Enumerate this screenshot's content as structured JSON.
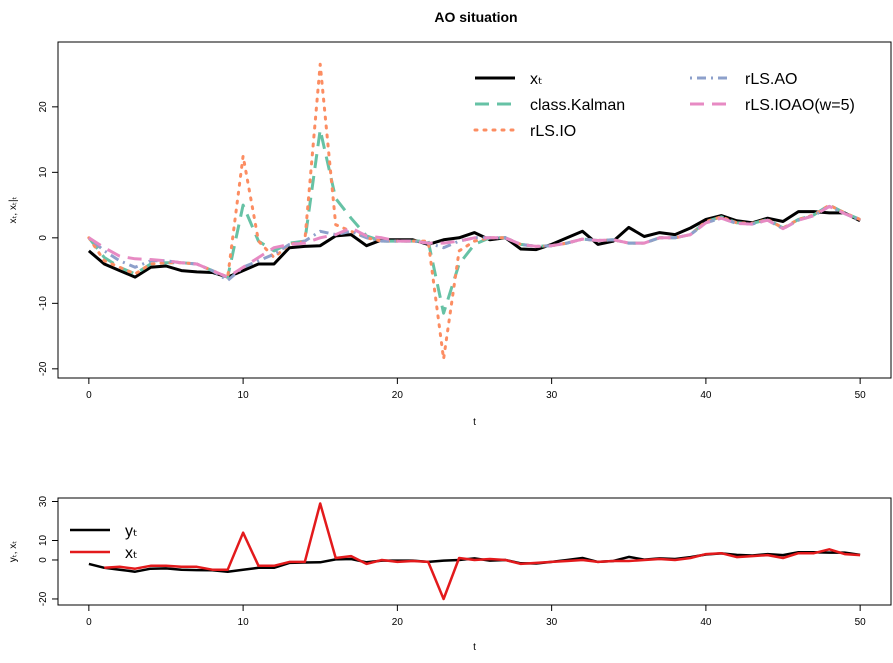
{
  "chart_data": [
    {
      "type": "line",
      "title": "AO situation",
      "xlabel": "t",
      "ylabel": "xₜ, xₜ|ₜ",
      "x": [
        0,
        1,
        2,
        3,
        4,
        5,
        6,
        7,
        8,
        9,
        10,
        11,
        12,
        13,
        14,
        15,
        16,
        17,
        18,
        19,
        20,
        21,
        22,
        23,
        24,
        25,
        26,
        27,
        28,
        29,
        30,
        31,
        32,
        33,
        34,
        35,
        36,
        37,
        38,
        39,
        40,
        41,
        42,
        43,
        44,
        45,
        46,
        47,
        48,
        49,
        50
      ],
      "xlim": [
        -2,
        52
      ],
      "xticks": [
        0,
        10,
        20,
        30,
        40,
        50
      ],
      "ylim": [
        -21.4,
        29.9
      ],
      "yticks": [
        -20,
        -10,
        0,
        10,
        20
      ],
      "legend": "top-right",
      "series": [
        {
          "name": "xₜ",
          "color": "#000000",
          "linestyle": "solid",
          "values": [
            -2,
            -4,
            -5,
            -6,
            -4.5,
            -4.3,
            -5,
            -5.2,
            -5.3,
            -6,
            -5,
            -4,
            -4,
            -1.5,
            -1.3,
            -1.2,
            0.3,
            0.5,
            -1.2,
            -0.3,
            -0.3,
            -0.3,
            -1,
            -0.3,
            0,
            0.8,
            -0.3,
            0,
            -1.7,
            -1.8,
            -1,
            0,
            1,
            -1,
            -0.5,
            1.6,
            0.2,
            0.8,
            0.5,
            1.5,
            2.8,
            3.4,
            2.6,
            2.3,
            3,
            2.5,
            4,
            4,
            3.8,
            3.8,
            2.6
          ]
        },
        {
          "name": "class.Kalman",
          "color": "#66c2a5",
          "linestyle": "dashed",
          "values": [
            0,
            -3,
            -4.5,
            -5.5,
            -4,
            -3.8,
            -3.8,
            -4,
            -5,
            -6,
            5,
            -0.5,
            -2,
            -0.8,
            -0.5,
            16.5,
            6,
            3,
            0.3,
            -0.5,
            -0.5,
            -0.5,
            -0.5,
            -11.5,
            -4,
            -1,
            0,
            0,
            -1,
            -1.3,
            -1.2,
            -0.8,
            -0.2,
            -0.4,
            -0.3,
            -0.8,
            -0.8,
            0,
            0,
            0.5,
            2.5,
            3.2,
            2.3,
            2.2,
            2.8,
            1.5,
            2.8,
            3.5,
            5,
            3.8,
            2.8
          ]
        },
        {
          "name": "rLS.IO",
          "color": "#fc8d62",
          "linestyle": "dotted",
          "values": [
            0,
            -3.5,
            -4.5,
            -5.5,
            -4,
            -3.8,
            -3.8,
            -4,
            -5,
            -6,
            12.5,
            -0.5,
            -3,
            -1,
            -0.5,
            26.5,
            2,
            1,
            0,
            -0.5,
            -0.5,
            -0.5,
            -0.5,
            -18.5,
            -2,
            -0.5,
            0,
            0,
            -1,
            -1.3,
            -1.2,
            -0.8,
            -0.2,
            -0.4,
            -0.3,
            -0.8,
            -0.8,
            0,
            0,
            0.5,
            2.5,
            3.2,
            2.3,
            2.2,
            2.8,
            1.5,
            2.8,
            3.5,
            5,
            3.8,
            2.8
          ]
        },
        {
          "name": "rLS.AO",
          "color": "#8da0cb",
          "linestyle": "dotdash",
          "values": [
            0,
            -2,
            -3.5,
            -4.5,
            -3.5,
            -3.5,
            -3.8,
            -4,
            -5,
            -6.5,
            -4.5,
            -3.5,
            -2.5,
            -1,
            -0.5,
            1,
            0.5,
            1,
            0,
            -0.5,
            -0.5,
            -0.5,
            -0.8,
            -1.5,
            -0.5,
            0,
            0,
            0,
            -1,
            -1.3,
            -1.2,
            -0.8,
            -0.2,
            -0.4,
            -0.3,
            -0.8,
            -0.8,
            0,
            0,
            0.5,
            2.3,
            3,
            2.2,
            2.1,
            2.7,
            1.4,
            2.7,
            3.4,
            4.8,
            3.7,
            2.7
          ]
        },
        {
          "name": "rLS.IOAO(w=5)",
          "color": "#e78ac3",
          "linestyle": "dashed",
          "values": [
            0,
            -1.5,
            -2.8,
            -3.2,
            -3.3,
            -3.5,
            -3.8,
            -4,
            -5,
            -6,
            -4.5,
            -3,
            -1.5,
            -1,
            -0.8,
            0,
            0.5,
            1.5,
            0.3,
            0,
            -0.5,
            -0.5,
            -0.8,
            -0.8,
            -0.5,
            0,
            0,
            0,
            -1,
            -1.3,
            -1.2,
            -0.8,
            -0.2,
            -0.4,
            -0.3,
            -0.8,
            -0.8,
            0,
            0,
            0.5,
            2.3,
            3,
            2.2,
            2.1,
            2.7,
            1.4,
            2.7,
            3.4,
            4.8,
            3.7,
            2.7
          ]
        }
      ]
    },
    {
      "type": "line",
      "xlabel": "t",
      "ylabel": "yₜ, xₜ",
      "x": [
        0,
        1,
        2,
        3,
        4,
        5,
        6,
        7,
        8,
        9,
        10,
        11,
        12,
        13,
        14,
        15,
        16,
        17,
        18,
        19,
        20,
        21,
        22,
        23,
        24,
        25,
        26,
        27,
        28,
        29,
        30,
        31,
        32,
        33,
        34,
        35,
        36,
        37,
        38,
        39,
        40,
        41,
        42,
        43,
        44,
        45,
        46,
        47,
        48,
        49,
        50
      ],
      "xlim": [
        -2,
        52
      ],
      "xticks": [
        0,
        10,
        20,
        30,
        40,
        50
      ],
      "ylim": [
        -23.1,
        31.8
      ],
      "yticks": [
        -20,
        0,
        10,
        30
      ],
      "legend": "top-left",
      "series": [
        {
          "name": "yₜ",
          "color": "#000000",
          "linestyle": "solid",
          "values": [
            -2,
            -4,
            -5,
            -6,
            -4.5,
            -4.3,
            -5,
            -5.2,
            -5.3,
            -6,
            -5,
            -4,
            -4,
            -1.5,
            -1.3,
            -1.2,
            0.3,
            0.5,
            -1.2,
            -0.3,
            -0.3,
            -0.3,
            -1,
            -0.3,
            0,
            0.8,
            -0.3,
            0,
            -1.7,
            -1.8,
            -1,
            0,
            1,
            -1,
            -0.5,
            1.6,
            0.2,
            0.8,
            0.5,
            1.5,
            2.8,
            3.4,
            2.6,
            2.3,
            3,
            2.5,
            4,
            4,
            3.8,
            3.8,
            2.6
          ]
        },
        {
          "name": "xₜ",
          "color": "#e31a1c",
          "linestyle": "solid",
          "values": [
            null,
            -4,
            -3.5,
            -4.5,
            -3,
            -3,
            -3.5,
            -3.5,
            -5,
            -5,
            14,
            -3,
            -3,
            -1,
            -1,
            29,
            1,
            2,
            -2,
            0,
            -1,
            -0.5,
            -1,
            -20,
            1,
            0,
            0.5,
            0,
            -2,
            -1.5,
            -1,
            -0.5,
            0,
            -1,
            -0.5,
            -0.5,
            0,
            0.5,
            0,
            1,
            3,
            3.5,
            1.5,
            2,
            2.5,
            1,
            3.5,
            3.5,
            5.5,
            3,
            2.5
          ]
        }
      ]
    }
  ]
}
